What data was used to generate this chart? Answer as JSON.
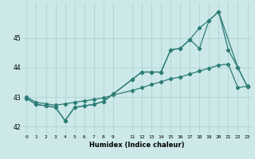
{
  "xlabel": "Humidex (Indice chaleur)",
  "bg_color": "#cce8e8",
  "grid_color": "#aad0d0",
  "line_color": "#2d7d78",
  "xlim": [
    -0.5,
    23.5
  ],
  "ylim": [
    41.75,
    46.2
  ],
  "yticks": [
    42,
    43,
    44,
    45
  ],
  "xticks": [
    0,
    1,
    2,
    3,
    4,
    5,
    6,
    7,
    8,
    9,
    11,
    12,
    13,
    14,
    15,
    16,
    17,
    18,
    19,
    20,
    21,
    22,
    23
  ],
  "xtick_labels": [
    "0",
    "1",
    "2",
    "3",
    "4",
    "5",
    "6",
    "7",
    "8",
    "9",
    "11",
    "12",
    "13",
    "14",
    "15",
    "16",
    "17",
    "18",
    "19",
    "20",
    "21",
    "22",
    "23"
  ],
  "line1_x": [
    0,
    1,
    2,
    3,
    4,
    5,
    6,
    7,
    8,
    9,
    11,
    12,
    13,
    14,
    15,
    16,
    17,
    18,
    19,
    20,
    22,
    23
  ],
  "line1_y": [
    42.95,
    42.75,
    42.7,
    42.65,
    42.2,
    42.65,
    42.7,
    42.75,
    42.85,
    43.1,
    43.6,
    43.85,
    43.85,
    43.85,
    44.6,
    44.65,
    44.95,
    44.65,
    45.6,
    45.9,
    44.0,
    43.35
  ],
  "line2_x": [
    0,
    1,
    2,
    3,
    4,
    5,
    6,
    7,
    8,
    9,
    11,
    12,
    13,
    14,
    15,
    16,
    17,
    18,
    19,
    20,
    21,
    22,
    23
  ],
  "line2_y": [
    42.95,
    42.75,
    42.7,
    42.65,
    42.2,
    42.65,
    42.7,
    42.75,
    42.85,
    43.1,
    43.6,
    43.85,
    43.85,
    43.85,
    44.6,
    44.65,
    44.95,
    45.35,
    45.6,
    45.9,
    44.6,
    44.0,
    43.35
  ],
  "line3_x": [
    0,
    1,
    2,
    3,
    4,
    5,
    6,
    7,
    8,
    9,
    11,
    12,
    13,
    14,
    15,
    16,
    17,
    18,
    19,
    20,
    21,
    22,
    23
  ],
  "line3_y": [
    43.0,
    42.82,
    42.77,
    42.72,
    42.77,
    42.82,
    42.87,
    42.92,
    42.97,
    43.07,
    43.22,
    43.32,
    43.42,
    43.52,
    43.62,
    43.68,
    43.78,
    43.88,
    43.98,
    44.08,
    44.12,
    43.32,
    43.37
  ]
}
